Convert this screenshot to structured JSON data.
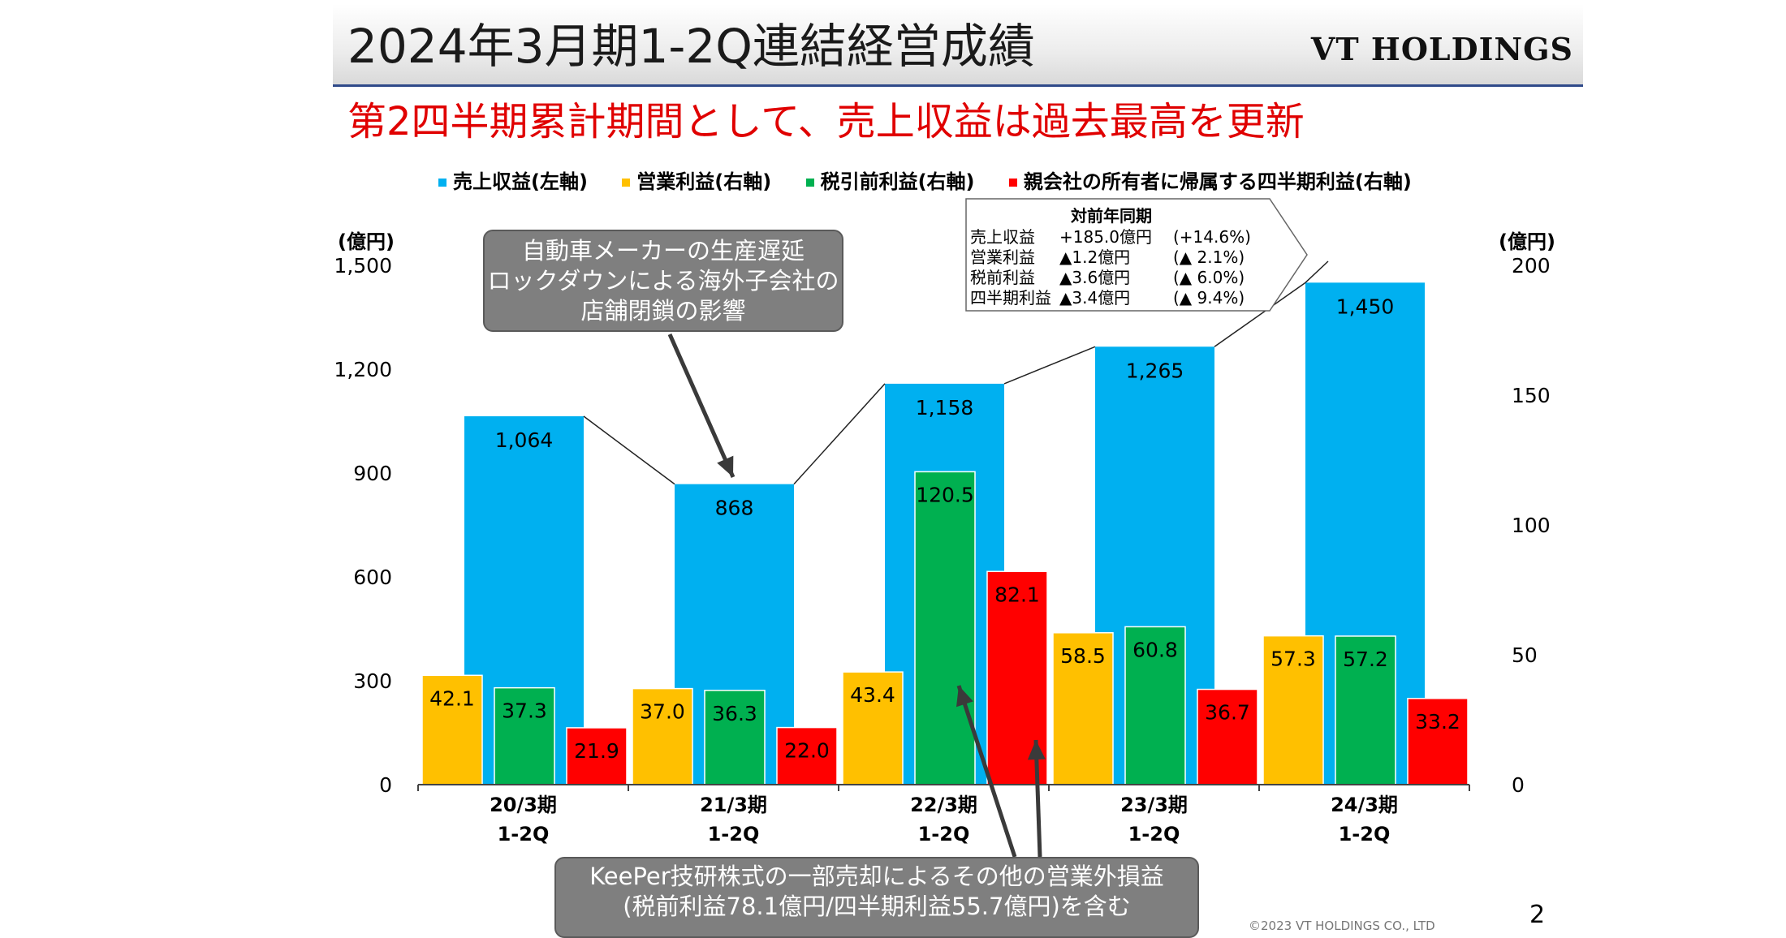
{
  "header": {
    "title": "2024年3月期1-2Q連結経営成績",
    "logo": "VT HOLDINGS"
  },
  "subtitle": "第2四半期累計期間として、売上収益は過去最高を更新",
  "legend": [
    {
      "label": "売上収益(左軸)",
      "color": "#00b0f0"
    },
    {
      "label": "営業利益(右軸)",
      "color": "#ffc000"
    },
    {
      "label": "税引前利益(右軸)",
      "color": "#00b050"
    },
    {
      "label": "親会社の所有者に帰属する四半期利益(右軸)",
      "color": "#ff0000"
    }
  ],
  "units": {
    "left": "(億円)",
    "right": "(億円)"
  },
  "callouts": {
    "lockdown": [
      "自動車メーカーの生産遅延",
      "ロックダウンによる海外子会社の",
      "店舗閉鎖の影響"
    ],
    "keeper": [
      "KeePer技研株式の一部売却によるその他の営業外損益",
      "(税前利益78.1億円/四半期利益55.7億円)を含む"
    ]
  },
  "yoy": {
    "title": "対前年同期",
    "rows": [
      {
        "name": "売上収益",
        "value": "+185.0億円",
        "pct": "(+14.6%)"
      },
      {
        "name": "営業利益",
        "value": "▲1.2億円",
        "pct": "(▲ 2.1%)"
      },
      {
        "name": "税前利益",
        "value": "▲3.6億円",
        "pct": "(▲ 6.0%)"
      },
      {
        "name": "四半期利益",
        "value": "▲3.4億円",
        "pct": "(▲ 9.4%)"
      }
    ]
  },
  "footer": {
    "copyright": "©2023 VT HOLDINGS CO., LTD",
    "page": "2"
  },
  "chart_data": {
    "type": "bar",
    "categories": [
      [
        "20/3期",
        "1-2Q"
      ],
      [
        "21/3期",
        "1-2Q"
      ],
      [
        "22/3期",
        "1-2Q"
      ],
      [
        "23/3期",
        "1-2Q"
      ],
      [
        "24/3期",
        "1-2Q"
      ]
    ],
    "left_axis": {
      "ylim": [
        0,
        1500
      ],
      "ticks": [
        "0",
        "300",
        "600",
        "900",
        "1,200",
        "1,500"
      ]
    },
    "right_axis": {
      "ylim": [
        0,
        200
      ],
      "ticks": [
        "0",
        "50",
        "100",
        "150",
        "200"
      ]
    },
    "revenue": {
      "name": "売上収益(左軸)",
      "axis": "left",
      "color": "#00b0f0",
      "values": [
        1064,
        868,
        1158,
        1265,
        1450
      ],
      "labels": [
        "1,064",
        "868",
        "1,158",
        "1,265",
        "1,450"
      ]
    },
    "series": [
      {
        "name": "営業利益(右軸)",
        "axis": "right",
        "color": "#ffc000",
        "values": [
          42.1,
          37.0,
          43.4,
          58.5,
          57.3
        ],
        "labels": [
          "42.1",
          "37.0",
          "43.4",
          "58.5",
          "57.3"
        ]
      },
      {
        "name": "税引前利益(右軸)",
        "axis": "right",
        "color": "#00b050",
        "values": [
          37.3,
          36.3,
          120.5,
          60.8,
          57.2
        ],
        "labels": [
          "37.3",
          "36.3",
          "120.5",
          "60.8",
          "57.2"
        ]
      },
      {
        "name": "親会社の所有者に帰属する四半期利益(右軸)",
        "axis": "right",
        "color": "#ff0000",
        "values": [
          21.9,
          22.0,
          82.1,
          36.7,
          33.2
        ],
        "labels": [
          "21.9",
          "22.0",
          "82.1",
          "36.7",
          "33.2"
        ]
      }
    ]
  }
}
